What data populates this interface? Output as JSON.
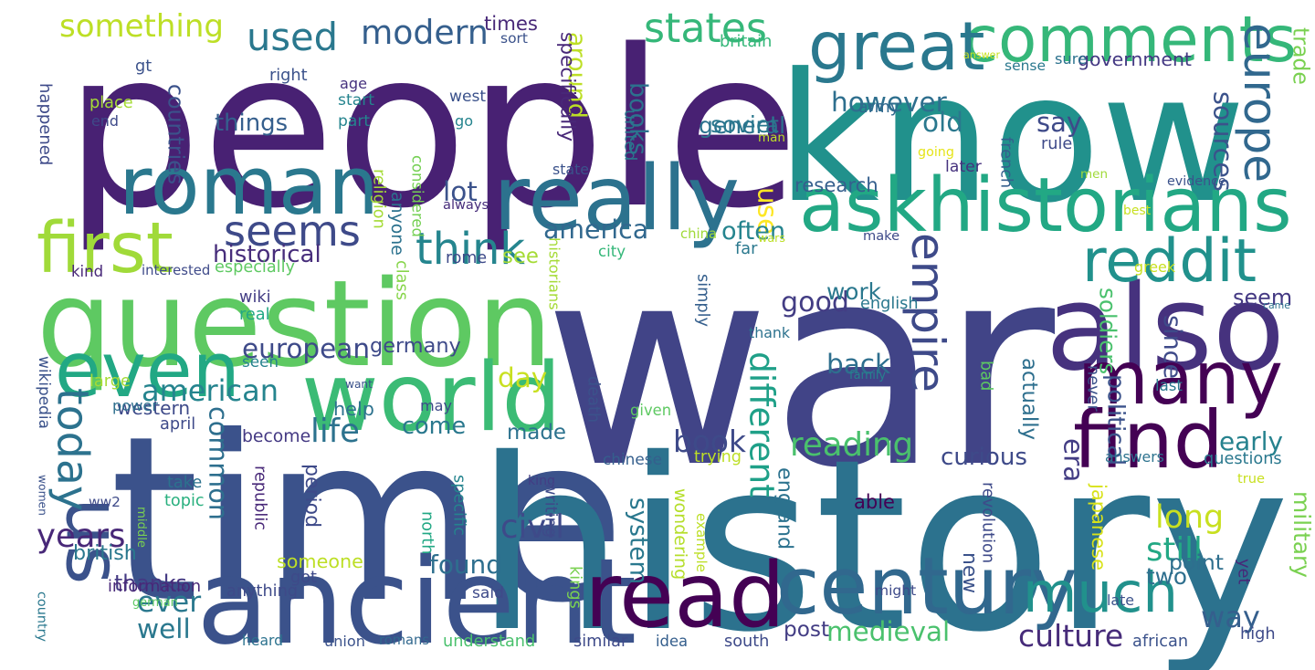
{
  "words": [
    {
      "text": "war",
      "color": "#414487"
    },
    {
      "text": "people",
      "color": "#482173"
    },
    {
      "text": "know",
      "color": "#21918c"
    },
    {
      "text": "time",
      "color": "#3b528b"
    },
    {
      "text": "history",
      "color": "#2c728e"
    },
    {
      "text": "question",
      "color": "#5ec962"
    },
    {
      "text": "ancient",
      "color": "#3b528b"
    },
    {
      "text": "read",
      "color": "#440154"
    },
    {
      "text": "century",
      "color": "#31688e"
    },
    {
      "text": "also",
      "color": "#46327e"
    },
    {
      "text": "comments",
      "color": "#35b779"
    },
    {
      "text": "roman",
      "color": "#2a788e"
    },
    {
      "text": "askhistorians",
      "color": "#22a884"
    },
    {
      "text": "really",
      "color": "#2c728e"
    },
    {
      "text": "world",
      "color": "#3bbb75"
    },
    {
      "text": "many",
      "color": "#440154"
    },
    {
      "text": "much",
      "color": "#21918c"
    },
    {
      "text": "first",
      "color": "#a0da39"
    },
    {
      "text": "even",
      "color": "#22a884"
    },
    {
      "text": "find",
      "color": "#440154"
    },
    {
      "text": "empire",
      "color": "#3e4a89"
    },
    {
      "text": "us",
      "color": "#3b528b"
    },
    {
      "text": "great",
      "color": "#2a788e"
    },
    {
      "text": "reddit",
      "color": "#21918c"
    },
    {
      "text": "europe",
      "color": "#31688e"
    },
    {
      "text": "seems",
      "color": "#3e4a89"
    },
    {
      "text": "think",
      "color": "#25858e"
    },
    {
      "text": "today",
      "color": "#2c728e"
    },
    {
      "text": "different",
      "color": "#1fa088"
    },
    {
      "text": "states",
      "color": "#35b779"
    },
    {
      "text": "modern",
      "color": "#355f8d"
    },
    {
      "text": "used",
      "color": "#2a788e"
    },
    {
      "text": "something",
      "color": "#bddf26"
    },
    {
      "text": "years",
      "color": "#482878"
    },
    {
      "text": "common",
      "color": "#2e6f8e"
    },
    {
      "text": "book",
      "color": "#3e4a89"
    },
    {
      "text": "reading",
      "color": "#4ac16d"
    },
    {
      "text": "medieval",
      "color": "#4ac16d"
    },
    {
      "text": "culture",
      "color": "#472c7a"
    },
    {
      "text": "good",
      "color": "#433d84"
    },
    {
      "text": "however",
      "color": "#2e6f8e"
    },
    {
      "text": "use",
      "color": "#fde725"
    },
    {
      "text": "books",
      "color": "#2c728e"
    },
    {
      "text": "american",
      "color": "#25848e"
    },
    {
      "text": "european",
      "color": "#3e4a89"
    },
    {
      "text": "germany",
      "color": "#3e4a89"
    },
    {
      "text": "ever",
      "color": "#2a788e"
    },
    {
      "text": "life",
      "color": "#2c728e"
    },
    {
      "text": "america",
      "color": "#31688e"
    },
    {
      "text": "way",
      "color": "#355f8d"
    },
    {
      "text": "early",
      "color": "#26828e"
    },
    {
      "text": "long",
      "color": "#c8e020"
    },
    {
      "text": "still",
      "color": "#22a884"
    },
    {
      "text": "back",
      "color": "#2e6f8e"
    },
    {
      "text": "say",
      "color": "#3e4a89"
    },
    {
      "text": "sources",
      "color": "#3b528b"
    },
    {
      "text": "seem",
      "color": "#443983"
    },
    {
      "text": "often",
      "color": "#25848e"
    },
    {
      "text": "come",
      "color": "#2a788e"
    },
    {
      "text": "made",
      "color": "#2c728e"
    },
    {
      "text": "civil",
      "color": "#3e4a89"
    },
    {
      "text": "found",
      "color": "#2e6f8e"
    },
    {
      "text": "well",
      "color": "#2a788e"
    },
    {
      "text": "new",
      "color": "#3b528b"
    },
    {
      "text": "two",
      "color": "#2e6f8e"
    },
    {
      "text": "era",
      "color": "#433d84"
    },
    {
      "text": "curious",
      "color": "#3e4a89"
    },
    {
      "text": "work",
      "color": "#2a788e"
    },
    {
      "text": "actually",
      "color": "#2e6f8e"
    },
    {
      "text": "day",
      "color": "#c8e020"
    },
    {
      "text": "around",
      "color": "#bddf26"
    },
    {
      "text": "lot",
      "color": "#3b528b"
    },
    {
      "text": "see",
      "color": "#a5db36"
    },
    {
      "text": "old",
      "color": "#2a788e"
    },
    {
      "text": "general",
      "color": "#2c728e"
    },
    {
      "text": "army",
      "color": "#31688e"
    },
    {
      "text": "soviet",
      "color": "#2a788e"
    },
    {
      "text": "thanks",
      "color": "#443983"
    },
    {
      "text": "british",
      "color": "#2a788e"
    },
    {
      "text": "western",
      "color": "#3e4a89"
    },
    {
      "text": "help",
      "color": "#2c728e"
    },
    {
      "text": "become",
      "color": "#443983"
    },
    {
      "text": "seen",
      "color": "#26828e"
    },
    {
      "text": "historical",
      "color": "#472d7b"
    },
    {
      "text": "anyone",
      "color": "#2c728e"
    },
    {
      "text": "historians",
      "color": "#a5db36"
    },
    {
      "text": "considered",
      "color": "#75d054"
    },
    {
      "text": "things",
      "color": "#355f8d"
    },
    {
      "text": "countries",
      "color": "#3b528b"
    },
    {
      "text": "happened",
      "color": "#3e4a89"
    },
    {
      "text": "rome",
      "color": "#3e4a89"
    },
    {
      "text": "period",
      "color": "#3e4a89"
    },
    {
      "text": "able",
      "color": "#440154"
    },
    {
      "text": "someone",
      "color": "#bddf26"
    },
    {
      "text": "wondering",
      "color": "#b5de2b"
    },
    {
      "text": "point",
      "color": "#2e6f8e"
    },
    {
      "text": "since",
      "color": "#3e4a89"
    },
    {
      "text": "soldiers",
      "color": "#4ac16d"
    },
    {
      "text": "political",
      "color": "#3b528b"
    },
    {
      "text": "military",
      "color": "#7ad151"
    },
    {
      "text": "japanese",
      "color": "#d8e219"
    },
    {
      "text": "england",
      "color": "#2c728e"
    },
    {
      "text": "system",
      "color": "#2a788e"
    },
    {
      "text": "post",
      "color": "#433d84"
    },
    {
      "text": "research",
      "color": "#355f8d"
    },
    {
      "text": "evidence",
      "color": "#3b528b"
    },
    {
      "text": "government",
      "color": "#443983"
    },
    {
      "text": "times",
      "color": "#482878"
    },
    {
      "text": "sort",
      "color": "#3b528b"
    },
    {
      "text": "britain",
      "color": "#35b779"
    },
    {
      "text": "right",
      "color": "#3b528b"
    },
    {
      "text": "gt",
      "color": "#3b528b"
    },
    {
      "text": "age",
      "color": "#46327e"
    },
    {
      "text": "start",
      "color": "#25848e"
    },
    {
      "text": "part",
      "color": "#25848e"
    },
    {
      "text": "place",
      "color": "#a5db36"
    },
    {
      "text": "end",
      "color": "#3e4a89"
    },
    {
      "text": "west",
      "color": "#3b528b"
    },
    {
      "text": "go",
      "color": "#25848e"
    },
    {
      "text": "specifically",
      "color": "#482878"
    },
    {
      "text": "united",
      "color": "#2a788e"
    },
    {
      "text": "answer",
      "color": "#c8e020"
    },
    {
      "text": "sense",
      "color": "#2a788e"
    },
    {
      "text": "sure",
      "color": "#2c728e"
    },
    {
      "text": "trade",
      "color": "#7ad151"
    },
    {
      "text": "going",
      "color": "#e5e419"
    },
    {
      "text": "man",
      "color": "#bddf26"
    },
    {
      "text": "rule",
      "color": "#3e4a89"
    },
    {
      "text": "later",
      "color": "#46327e"
    },
    {
      "text": "french",
      "color": "#355f8d"
    },
    {
      "text": "men",
      "color": "#a0da39"
    },
    {
      "text": "state",
      "color": "#3b528b"
    },
    {
      "text": "always",
      "color": "#472d7b"
    },
    {
      "text": "religion",
      "color": "#a5db36"
    },
    {
      "text": "china",
      "color": "#a0da39"
    },
    {
      "text": "far",
      "color": "#2a788e"
    },
    {
      "text": "city",
      "color": "#35b779"
    },
    {
      "text": "wars",
      "color": "#bddf26"
    },
    {
      "text": "make",
      "color": "#3e4a89"
    },
    {
      "text": "best",
      "color": "#c8e020"
    },
    {
      "text": "kind",
      "color": "#482878"
    },
    {
      "text": "interested",
      "color": "#3e4a89"
    },
    {
      "text": "especially",
      "color": "#5ec962"
    },
    {
      "text": "wiki",
      "color": "#433d84"
    },
    {
      "text": "class",
      "color": "#86d549"
    },
    {
      "text": "real",
      "color": "#22a884"
    },
    {
      "text": "wikipedia",
      "color": "#3b528b"
    },
    {
      "text": "large",
      "color": "#a5db36"
    },
    {
      "text": "want",
      "color": "#3b528b"
    },
    {
      "text": "simply",
      "color": "#355f8d"
    },
    {
      "text": "thank",
      "color": "#2c728e"
    },
    {
      "text": "english",
      "color": "#2a788e"
    },
    {
      "text": "greek",
      "color": "#c8e020"
    },
    {
      "text": "came",
      "color": "#2c728e"
    },
    {
      "text": "family",
      "color": "#26828e"
    },
    {
      "text": "bad",
      "color": "#5ec962"
    },
    {
      "text": "never",
      "color": "#3b528b"
    },
    {
      "text": "last",
      "color": "#2a788e"
    },
    {
      "text": "power",
      "color": "#2e6f8e"
    },
    {
      "text": "april",
      "color": "#3e4a89"
    },
    {
      "text": "may",
      "color": "#3e4a89"
    },
    {
      "text": "given",
      "color": "#5ec962"
    },
    {
      "text": "death",
      "color": "#3b528b"
    },
    {
      "text": "women",
      "color": "#3b528b"
    },
    {
      "text": "middle",
      "color": "#7ad151"
    },
    {
      "text": "take",
      "color": "#2c728e"
    },
    {
      "text": "topic",
      "color": "#2ab07f"
    },
    {
      "text": "republic",
      "color": "#482878"
    },
    {
      "text": "ww2",
      "color": "#3e4a89"
    },
    {
      "text": "king",
      "color": "#433d84"
    },
    {
      "text": "chinese",
      "color": "#355f8d"
    },
    {
      "text": "trying",
      "color": "#bddf26"
    },
    {
      "text": "answers",
      "color": "#2c728e"
    },
    {
      "text": "questions",
      "color": "#2a788e"
    },
    {
      "text": "true",
      "color": "#c8e020"
    },
    {
      "text": "specific",
      "color": "#25848e"
    },
    {
      "text": "north",
      "color": "#22a884"
    },
    {
      "text": "writing",
      "color": "#3e4a89"
    },
    {
      "text": "example",
      "color": "#bddf26"
    },
    {
      "text": "revolution",
      "color": "#3e4a89"
    },
    {
      "text": "yet",
      "color": "#482878"
    },
    {
      "text": "got",
      "color": "#3e4a89"
    },
    {
      "text": "anything",
      "color": "#3e4a89"
    },
    {
      "text": "said",
      "color": "#3e4a89"
    },
    {
      "text": "might",
      "color": "#3e4a89"
    },
    {
      "text": "information",
      "color": "#482878"
    },
    {
      "text": "german",
      "color": "#5ec962"
    },
    {
      "text": "late",
      "color": "#3b528b"
    },
    {
      "text": "country",
      "color": "#2a788e"
    },
    {
      "text": "heard",
      "color": "#2c728e"
    },
    {
      "text": "union",
      "color": "#3b528b"
    },
    {
      "text": "romans",
      "color": "#31688e"
    },
    {
      "text": "understand",
      "color": "#4ac16d"
    },
    {
      "text": "kings",
      "color": "#7ad151"
    },
    {
      "text": "similar",
      "color": "#3e4a89"
    },
    {
      "text": "idea",
      "color": "#355f8d"
    },
    {
      "text": "south",
      "color": "#3e4a89"
    },
    {
      "text": "african",
      "color": "#3b528b"
    },
    {
      "text": "high",
      "color": "#3e4a89"
    }
  ]
}
